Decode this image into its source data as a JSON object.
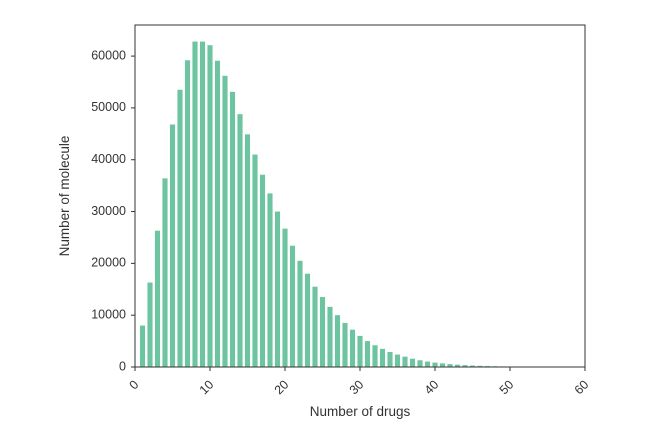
{
  "chart_data": {
    "type": "bar",
    "title": "",
    "xlabel": "Number of drugs",
    "ylabel": "Number of molecule",
    "xlim": [
      0,
      60
    ],
    "ylim": [
      0,
      66000
    ],
    "xticks": [
      0,
      10,
      20,
      30,
      40,
      50,
      60
    ],
    "yticks": [
      0,
      10000,
      20000,
      30000,
      40000,
      50000,
      60000
    ],
    "grid": false,
    "bar_color": "#6cc4a0",
    "x": [
      1,
      2,
      3,
      4,
      5,
      6,
      7,
      8,
      9,
      10,
      11,
      12,
      13,
      14,
      15,
      16,
      17,
      18,
      19,
      20,
      21,
      22,
      23,
      24,
      25,
      26,
      27,
      28,
      29,
      30,
      31,
      32,
      33,
      34,
      35,
      36,
      37,
      38,
      39,
      40,
      41,
      42,
      43,
      44,
      45,
      46,
      47,
      48,
      49,
      50,
      51,
      52,
      53,
      54,
      55,
      56,
      57,
      58,
      59
    ],
    "values": [
      8000,
      16300,
      26300,
      36400,
      46800,
      53500,
      59200,
      62800,
      62800,
      62100,
      59100,
      56200,
      53100,
      48800,
      44900,
      41000,
      37100,
      33500,
      30000,
      26700,
      23400,
      20500,
      18000,
      15500,
      13500,
      11600,
      10000,
      8500,
      7200,
      6000,
      5000,
      4200,
      3500,
      2900,
      2400,
      2000,
      1600,
      1300,
      1050,
      850,
      700,
      560,
      450,
      360,
      290,
      230,
      180,
      140,
      110,
      90,
      70,
      55,
      42,
      33,
      25,
      18,
      13,
      9,
      6
    ]
  }
}
